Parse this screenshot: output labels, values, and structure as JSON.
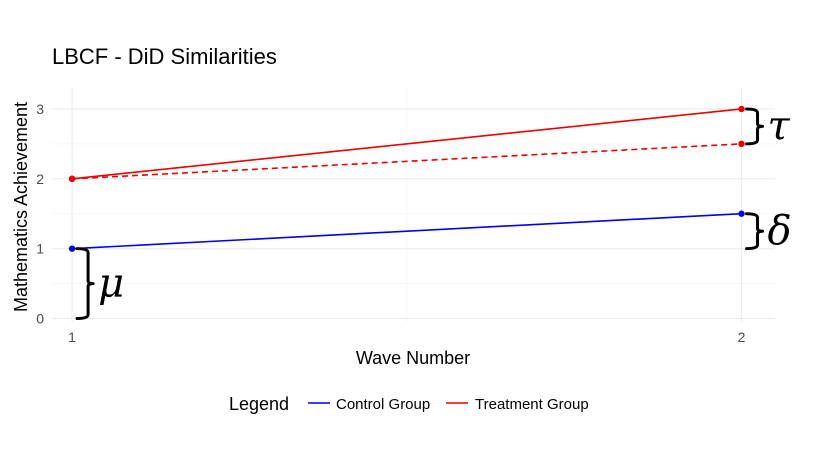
{
  "chart_data": {
    "type": "line",
    "title": "LBCF - DiD Similarities",
    "xlabel": "Wave Number",
    "ylabel": "Mathematics Achievement",
    "x": [
      1,
      2
    ],
    "xticks": [
      1,
      2
    ],
    "xlim": [
      0.97,
      2.05
    ],
    "yticks": [
      0,
      1,
      2,
      3
    ],
    "ylim": [
      -0.05,
      3.3
    ],
    "grid": true,
    "legend_position": "bottom",
    "legend": {
      "title": "Legend",
      "entries": [
        {
          "label": "Control Group",
          "color": "#0000ee"
        },
        {
          "label": "Treatment Group",
          "color": "#ee0000"
        }
      ]
    },
    "series": [
      {
        "name": "Control Group",
        "color": "#0000ee",
        "linestyle": "solid",
        "values": [
          1,
          1.5
        ]
      },
      {
        "name": "Treatment Group",
        "color": "#ee0000",
        "linestyle": "solid",
        "values": [
          2,
          3
        ]
      },
      {
        "name": "Treatment Counterfactual",
        "color": "#ee0000",
        "linestyle": "dashed",
        "values": [
          2,
          2.5
        ],
        "in_legend": false
      }
    ],
    "annotations": [
      {
        "symbol": "μ",
        "meaning": "control baseline",
        "x": 1,
        "y_from": 0,
        "y_to": 1
      },
      {
        "symbol": "δ",
        "meaning": "control change",
        "x": 2,
        "y_from": 1,
        "y_to": 1.5
      },
      {
        "symbol": "τ",
        "meaning": "treatment effect",
        "x": 2,
        "y_from": 2.5,
        "y_to": 3
      }
    ]
  }
}
